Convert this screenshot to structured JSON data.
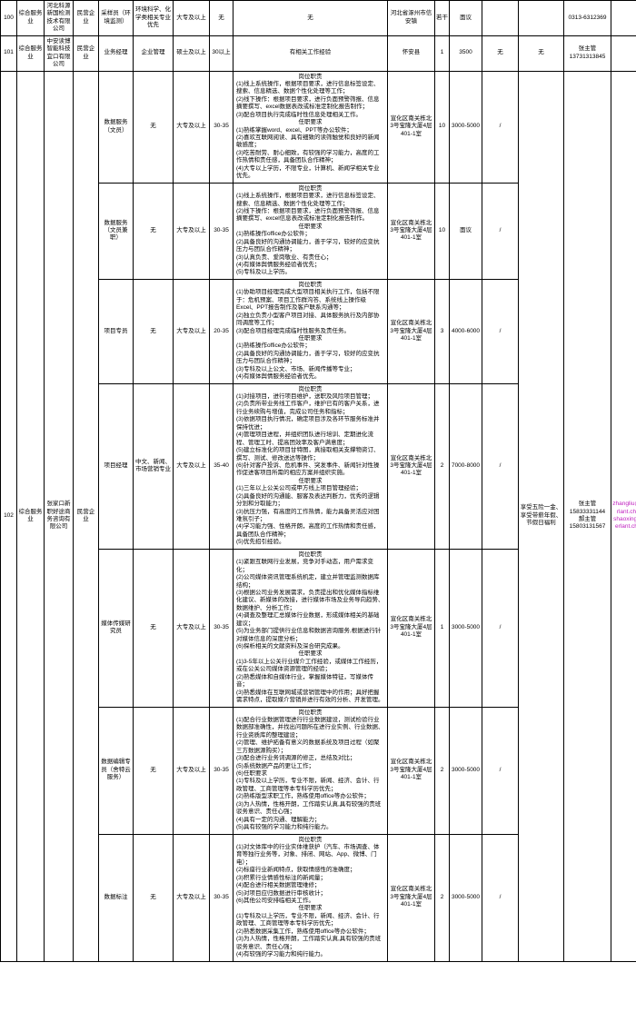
{
  "rows": [
    {
      "no": "100",
      "category": "综合服务业",
      "company": "河北科源新国检测技术有限公司",
      "nature": "民营企业",
      "position": "采样员（环境监测）",
      "major": "环境科学、化学类相关专业优先",
      "edu": "大专及以上",
      "age": "无",
      "desc": "无",
      "location": "河北省涿州市信安镇",
      "count": "若干",
      "salary": "面议",
      "cols": [
        "",
        "",
        "0313-6312369",
        ""
      ]
    },
    {
      "no": "101",
      "category": "综合服务业",
      "company": "中安读博智能科技宜口有限公司",
      "nature": "民营企业",
      "position": "业务经理",
      "major": "企业管理",
      "edu": "硕士及以上",
      "age": "30以上",
      "desc": "有相关工作经验",
      "location": "怀安县",
      "count": "1",
      "salary": "3500",
      "cols": [
        "无",
        "无",
        "张主管 13731313845",
        ""
      ]
    },
    {
      "group": {
        "no": "102",
        "category": "综合服务业",
        "company": "张家口新职好途商务咨询有限公司",
        "nature": "民营企业",
        "welfare": "享受五险一金、享受带薪年假、节假日福利",
        "contact": "张主管 15833331144\n郝主管 15803131567",
        "email": "zhangliu@chverlant.ch.com\nshaoxing@chverlant.ch.com"
      },
      "jobs": [
        {
          "position": "数据服务（文员）",
          "major": "无",
          "edu": "大专及以上",
          "age": "30-35",
          "desc": "岗位职责\n(1)线上系统操作，根据项目要求，进行信息标签设定、搜索、信息精选、数据个性化处理等工作；\n(2)线下操作：根据项目要求，进行负面预警筛报、信息摘要撰写、excel数据表改或标准定制化报告制作；\n(3)配合项目执行完成临时性信息处理相关工作。\n任职要求\n(1)熟练掌握word、excel、PPT等办公软件；\n(2)喜欢互联网阅读、具有细致的读筛触觉和良好的新闻敏感度；\n(3)吃苦耐劳、耐心细致，有较强的学习能力，高度的工作热情和责任感，具备团队合作精神；\n(4)大专以上学历，不限专业，计算机、新闻学相关专业优先。",
          "location": "宣化区南关栋北3号宝隆大厦4层401-1室",
          "count": "10",
          "salary": "3000-5000",
          "note": "/"
        },
        {
          "position": "数据服务（文员兼职）",
          "major": "无",
          "edu": "大专及以上",
          "age": "30-35",
          "desc": "岗位职责\n(1)线上系统操作，根据项目要求，进行信息标签设定、搜索、信息精选、数据个性化处理等工作；\n(2)线下操作：根据项目要求，进行负面预警筛报、信息摘要撰写、excel信息表改或标准定制化报告制作。\n任职要求\n(1)熟练操作office办公软件；\n(2)具备良好的沟通协调能力，善于学习，较好的应变抗压力与团队合作精神；\n(3)认真负责、爱岗敬业、有责任心；\n(4)有媒体舆情服务经验者优先；\n(5)专科及以上学历。",
          "location": "宣化区南关栋北3号宝隆大厦4层401-1室",
          "count": "10",
          "salary": "面议",
          "note": "/"
        },
        {
          "position": "项目专员",
          "major": "无",
          "edu": "大专及以上",
          "age": "20-35",
          "desc": "岗位职责\n(1)协助项目经理完成大型项目相关执行工作，包括不限于：危机预案、项目工作群沟答、系统线上操作级Excel、PPT报告制作及客户联系沟通等；\n(2)独立负责小型客户项目对接、具体服务执行及内部协同调度等工作；\n(3)配合项目经理完成临时性服务及责任务。\n任职要求\n(1)熟练操作office办公软件；\n(2)具备良好的沟通协调能力，善于学习，较好的应变抗压力与团队合作精神；\n(3)专科及以上公文、市场、新闻传播等专业；\n(4)有媒体舆情服务经验者优先。",
          "location": "宣化区南关栋北3号宝隆大厦4层401-1室",
          "count": "3",
          "salary": "4000-6000",
          "note": "/"
        },
        {
          "position": "项目经理",
          "major": "中文、新闻、市场营销专业",
          "edu": "大专及以上",
          "age": "35-40",
          "desc": "岗位职责\n(1)对接项目，进行项目维护，送职及风险项目管理；\n(2)负责所带业务线工作客户，维护已有的客户关系，进行业务续购与增值，完成公司任务和指标；\n(3)依据项目执行情况，确定项目涉及各环节服务标准并保持优进；\n(4)管理项目进程，并组织团队进行培训、定期进化流程、管理工时、提高团效率及客户满意度；\n(5)建立标准化的项目甘特图，真接取相关支撑物资订、撰写、测试、修改送达等操作；\n(6)针对客户投诉、危机事件、突发事件、新闻针对性操作促进客项目所需的相应方案并组织实施。\n任职要求\n(1)三年以上公关公司或甲方线上项目管理经验；\n(2)具备良好的沟通能、服客及表达判断力，优秀的逻辑分划和分取能力；\n(3)抗压力强，有高度的工作热情，能力具备灵活应对困难氛引子；\n(4)学习能力强、性格开朗，高度的工作热情和责任感，具备团队合作精神；\n(5)优先招引经验。",
          "location": "宣化区南关栋北3号宝隆大厦4层401-1室",
          "count": "2",
          "salary": "7000-8000",
          "note": "/"
        },
        {
          "position": "媒体传媒研究员",
          "major": "无",
          "edu": "大专及以上",
          "age": "30-35",
          "desc": "岗位职责\n(1)紧跟互联网行业发展，竞争对手动态，用户需求变化；\n(2)公司媒体资讯管理系统机定，建立并管理监测数据库结构；\n(3)根据公司业务发展需求，负责提出和优化媒体指标维化建议、新媒体的改接，进行媒体市场及业务导向趋势、数据维护、分析工作；\n(4)调查及整理汇总媒体行业数据，形成媒体相关的基础建议；\n(5)为业务部门提供行业信息和数据咨询服务,根据进行针对媒体信息的深度分析；\n(6)探析相关的文献资料及深合研究成果。\n任职要求\n(1)3-5年以上公关行业媒介工作经验，或媒体工作经历，或在公关公司媒体资源管理的经验；\n(2)熟悉媒体和自媒体行业，掌握媒体特征，写媒体传音；\n(3)熟悉媒体在互联网城或营销管理中的作用；具好把握需求特点，提取媒介营销并进行有效的分析、开发管理。",
          "location": "宣化区南关栋北3号宝隆大厦4层401-1室",
          "count": "1",
          "salary": "3000-5000",
          "note": "/"
        },
        {
          "position": "数据编辑专员（舍特云服务）",
          "major": "无",
          "edu": "大专及以上",
          "age": "30-35",
          "desc": "岗位职责\n(1)配合行业数据管理进行行业数据建设，测试检验行业数据部准确性，并找出问题所在进行业实例、行业数据、行业资质库的整理建设；\n(2)管理、维护拓备有意义的数据系统及项目过程（如聚三方数据源购买）；\n(3)配合进行业务词调源的修正，总结及对比；\n(5)系统数据产品的更让工作；\n(6)任职要求\n(1)专科及以上学历，专业不限，新闻、经济、会计、行政管理、工商管理等本专科学历优先；\n(2)熟练版型求职工作，熟练使用office等办公软件；\n(3)为人热情，性格开朗，工作踏实认真,具有较强的责班驳务意识、责任心强；\n(4)具有一定的沟通、理解能力；\n(5)具有较强的学习能力和纯行能力。",
          "location": "宣化区南关栋北3号宝隆大厦4层401-1室",
          "count": "2",
          "salary": "3000-5000",
          "note": "/"
        },
        {
          "position": "数据标注",
          "major": "无",
          "edu": "大专及以上",
          "age": "30-35",
          "desc": "岗位职责\n(1)对文体库中的行业实体维获护（汽车、市场调查、体育等独行业务等，对象、排闭、网站、App、微博、门电）；\n(2)标座行业新闻特点，获取情感性的准确度；\n(3)积累行业情感性标注的新闻量；\n(4)配合进行相关数据管理维修；\n(5)对项目应归数据进行审核收计；\n(6)其他公司安排临相关工作。\n任职要求\n(1)专科及以上学历，专业不限，新闻、经济、会计、行政管理、工商管理等本专科学历优先；\n(2)熟悉数据采集工作，熟练使用office等办公软件；\n(3)为人热情，性格开朗，工作踏实认真,具有较强的责班驳务意识、责任心强；\n(4)有较强的学习能力和纯行能力。",
          "location": "宣化区南关栋北3号宝隆大厦4层401-1室",
          "count": "2",
          "salary": "3000-5000",
          "note": "/"
        }
      ]
    }
  ]
}
